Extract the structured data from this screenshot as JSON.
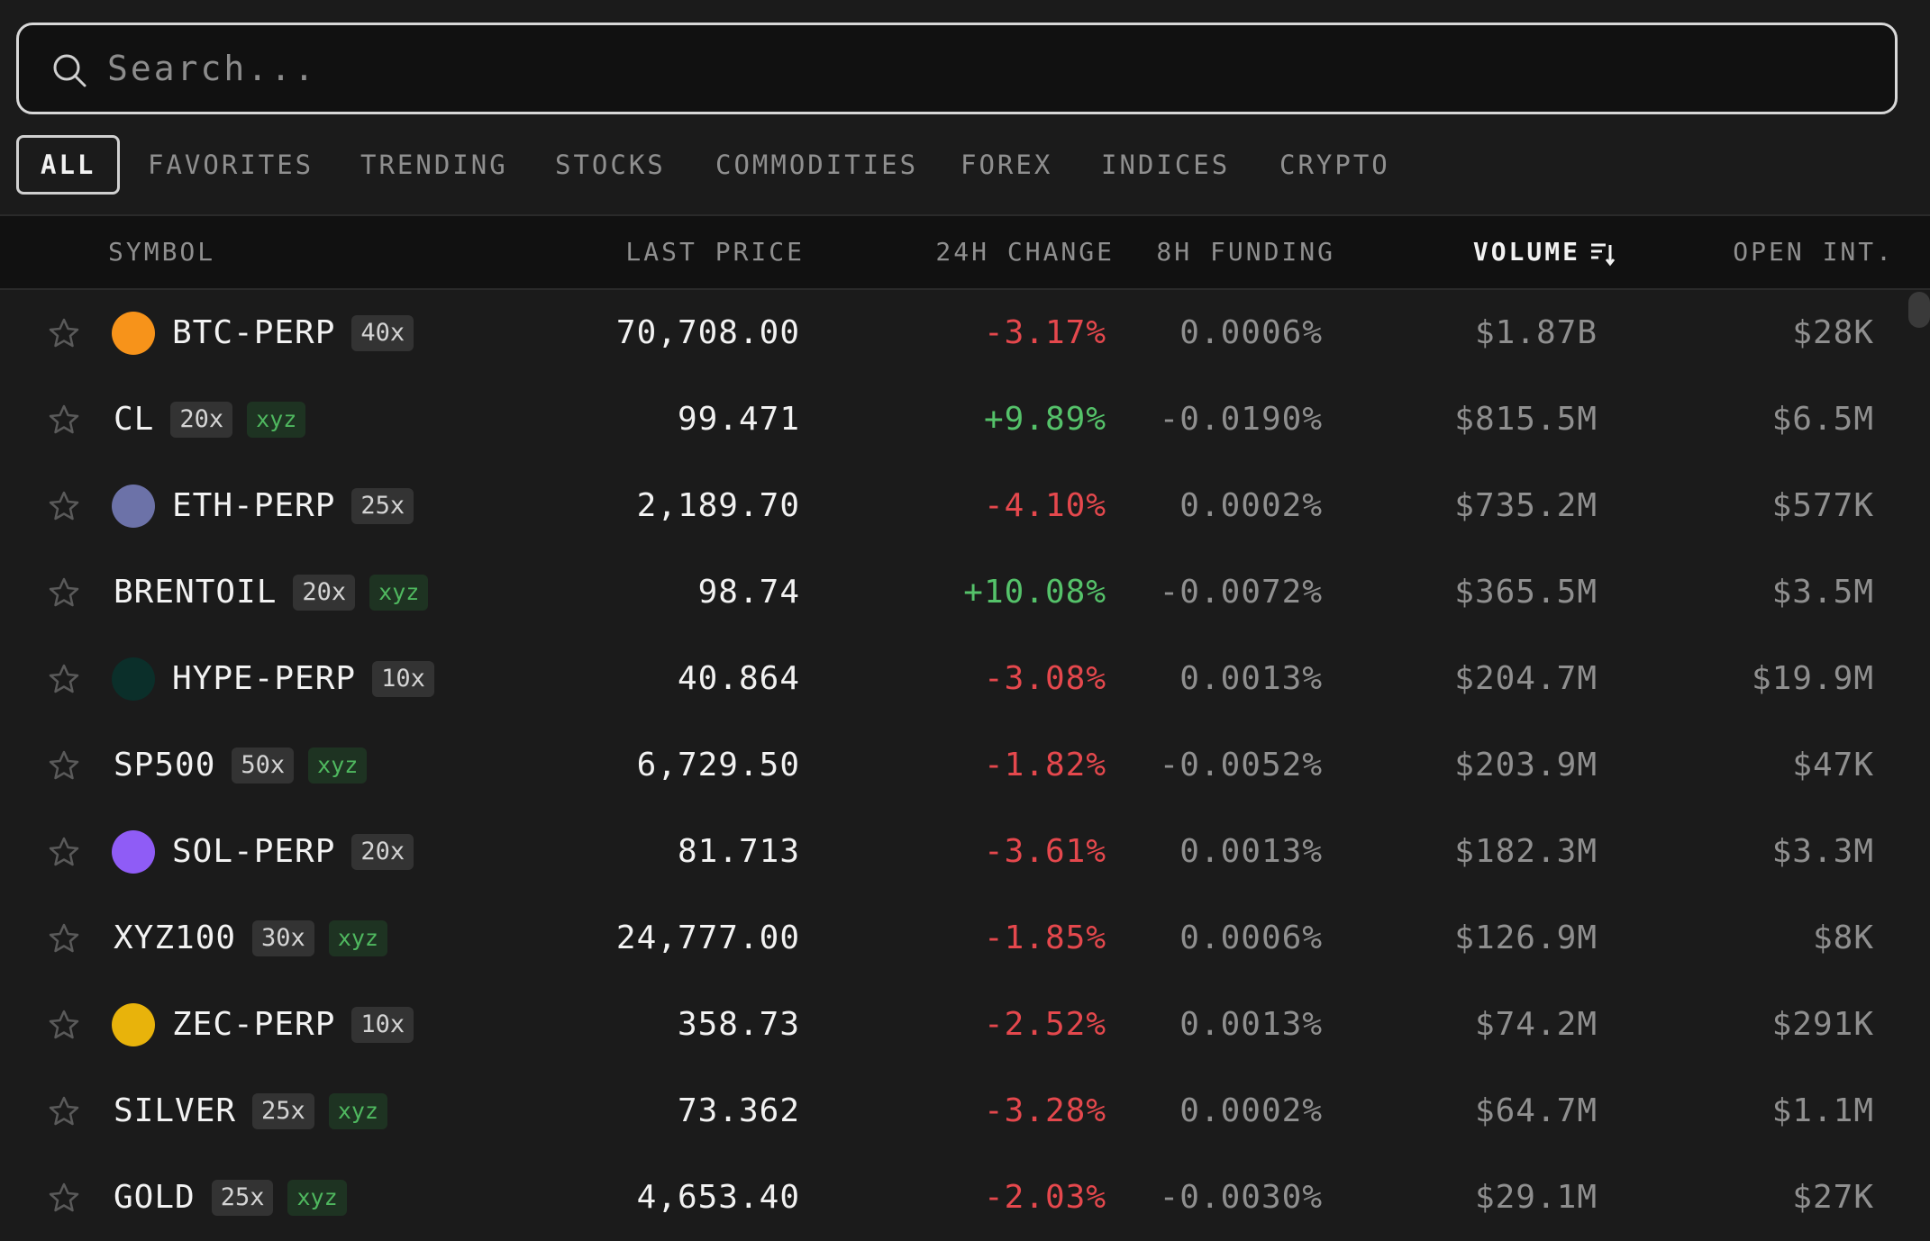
{
  "search": {
    "placeholder": "Search..."
  },
  "tabs": [
    "ALL",
    "FAVORITES",
    "TRENDING",
    "STOCKS",
    "COMMODITIES",
    "FOREX",
    "INDICES",
    "CRYPTO"
  ],
  "table": {
    "headers": [
      "SYMBOL",
      "LAST PRICE",
      "24H CHANGE",
      "8H FUNDING",
      "VOLUME",
      "OPEN INT."
    ],
    "rows": [
      {
        "symbol": "BTC-PERP",
        "leverage": "40x",
        "last_price": "70,708.00",
        "change_24h": "-3.17%",
        "funding_8h": "0.0006%",
        "volume": "$1.87B",
        "open_interest": "$28K"
      },
      {
        "symbol": "CL",
        "leverage": "20x",
        "tag": "xyz",
        "last_price": "99.471",
        "change_24h": "+9.89%",
        "funding_8h": "-0.0190%",
        "volume": "$815.5M",
        "open_interest": "$6.5M"
      },
      {
        "symbol": "ETH-PERP",
        "leverage": "25x",
        "last_price": "2,189.70",
        "change_24h": "-4.10%",
        "funding_8h": "0.0002%",
        "volume": "$735.2M",
        "open_interest": "$577K"
      },
      {
        "symbol": "BRENTOIL",
        "leverage": "20x",
        "tag": "xyz",
        "last_price": "98.74",
        "change_24h": "+10.08%",
        "funding_8h": "-0.0072%",
        "volume": "$365.5M",
        "open_interest": "$3.5M"
      },
      {
        "symbol": "HYPE-PERP",
        "leverage": "10x",
        "last_price": "40.864",
        "change_24h": "-3.08%",
        "funding_8h": "0.0013%",
        "volume": "$204.7M",
        "open_interest": "$19.9M"
      },
      {
        "symbol": "SP500",
        "leverage": "50x",
        "tag": "xyz",
        "last_price": "6,729.50",
        "change_24h": "-1.82%",
        "funding_8h": "-0.0052%",
        "volume": "$203.9M",
        "open_interest": "$47K"
      },
      {
        "symbol": "SOL-PERP",
        "leverage": "20x",
        "last_price": "81.713",
        "change_24h": "-3.61%",
        "funding_8h": "0.0013%",
        "volume": "$182.3M",
        "open_interest": "$3.3M"
      },
      {
        "symbol": "XYZ100",
        "leverage": "30x",
        "tag": "xyz",
        "last_price": "24,777.00",
        "change_24h": "-1.85%",
        "funding_8h": "0.0006%",
        "volume": "$126.9M",
        "open_interest": "$8K"
      },
      {
        "symbol": "ZEC-PERP",
        "leverage": "10x",
        "last_price": "358.73",
        "change_24h": "-2.52%",
        "funding_8h": "0.0013%",
        "volume": "$74.2M",
        "open_interest": "$291K"
      },
      {
        "symbol": "SILVER",
        "leverage": "25x",
        "tag": "xyz",
        "last_price": "73.362",
        "change_24h": "-3.28%",
        "funding_8h": "0.0002%",
        "volume": "$64.7M",
        "open_interest": "$1.1M"
      },
      {
        "symbol": "GOLD",
        "leverage": "25x",
        "tag": "xyz",
        "last_price": "4,653.40",
        "change_24h": "-2.03%",
        "funding_8h": "-0.0030%",
        "volume": "$29.1M",
        "open_interest": "$27K"
      }
    ]
  }
}
